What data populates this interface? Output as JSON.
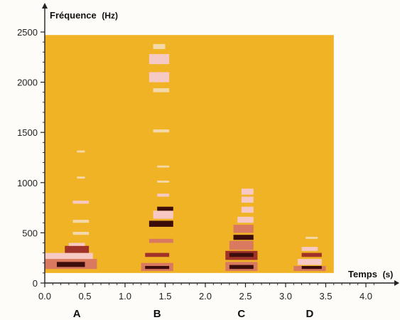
{
  "chart_data": {
    "type": "heatmap",
    "title": "",
    "xlabel": "Temps",
    "xunit": "(s)",
    "ylabel": "Fréquence",
    "yunit": "(Hz)",
    "xlim": [
      0,
      4.2
    ],
    "ylim": [
      0,
      2600
    ],
    "xticks": [
      "0.0",
      "0.5",
      "1.0",
      "1.5",
      "2.0",
      "2.5",
      "3.0",
      "3.5",
      "4.0"
    ],
    "yticks": [
      "0",
      "500",
      "1000",
      "1500",
      "2000",
      "2500"
    ],
    "plot_area": {
      "x_range": [
        0,
        3.6
      ],
      "y_range": [
        100,
        2470
      ],
      "background": "#f0b326"
    },
    "colors": {
      "background": "#f0b326",
      "levels": [
        "#f7c764",
        "#f5d8a8",
        "#f7c9c4",
        "#d97a60",
        "#a0322a",
        "#3c0d0a"
      ]
    },
    "segments": [
      {
        "label": "A",
        "label_x": 0.4,
        "bands": [
          {
            "x": [
              0.0,
              0.65
            ],
            "f": [
              140,
              240
            ],
            "level": 3
          },
          {
            "x": [
              0.15,
              0.5
            ],
            "f": [
              160,
              210
            ],
            "level": 5
          },
          {
            "x": [
              0.0,
              0.6
            ],
            "f": [
              240,
              300
            ],
            "level": 2
          },
          {
            "x": [
              0.25,
              0.55
            ],
            "f": [
              300,
              370
            ],
            "level": 4
          },
          {
            "x": [
              0.3,
              0.5
            ],
            "f": [
              370,
              400
            ],
            "level": 2
          },
          {
            "x": [
              0.35,
              0.55
            ],
            "f": [
              480,
              510
            ],
            "level": 1
          },
          {
            "x": [
              0.35,
              0.55
            ],
            "f": [
              600,
              630
            ],
            "level": 1
          },
          {
            "x": [
              0.35,
              0.55
            ],
            "f": [
              790,
              820
            ],
            "level": 2
          },
          {
            "x": [
              0.4,
              0.5
            ],
            "f": [
              1040,
              1060
            ],
            "level": 1
          },
          {
            "x": [
              0.4,
              0.5
            ],
            "f": [
              1300,
              1320
            ],
            "level": 1
          }
        ]
      },
      {
        "label": "B",
        "label_x": 1.4,
        "bands": [
          {
            "x": [
              1.2,
              1.6
            ],
            "f": [
              120,
              200
            ],
            "level": 3
          },
          {
            "x": [
              1.25,
              1.55
            ],
            "f": [
              140,
              170
            ],
            "level": 5
          },
          {
            "x": [
              1.25,
              1.55
            ],
            "f": [
              260,
              300
            ],
            "level": 4
          },
          {
            "x": [
              1.3,
              1.6
            ],
            "f": [
              400,
              440
            ],
            "level": 3
          },
          {
            "x": [
              1.3,
              1.6
            ],
            "f": [
              560,
              620
            ],
            "level": 5
          },
          {
            "x": [
              1.35,
              1.6
            ],
            "f": [
              640,
              720
            ],
            "level": 2
          },
          {
            "x": [
              1.4,
              1.6
            ],
            "f": [
              720,
              760
            ],
            "level": 5
          },
          {
            "x": [
              1.4,
              1.55
            ],
            "f": [
              860,
              890
            ],
            "level": 2
          },
          {
            "x": [
              1.4,
              1.55
            ],
            "f": [
              1000,
              1020
            ],
            "level": 1
          },
          {
            "x": [
              1.4,
              1.55
            ],
            "f": [
              1150,
              1170
            ],
            "level": 1
          },
          {
            "x": [
              1.35,
              1.55
            ],
            "f": [
              1500,
              1530
            ],
            "level": 1
          },
          {
            "x": [
              1.35,
              1.55
            ],
            "f": [
              1900,
              1940
            ],
            "level": 1
          },
          {
            "x": [
              1.3,
              1.55
            ],
            "f": [
              2000,
              2100
            ],
            "level": 2
          },
          {
            "x": [
              1.3,
              1.55
            ],
            "f": [
              2180,
              2280
            ],
            "level": 2
          },
          {
            "x": [
              1.35,
              1.5
            ],
            "f": [
              2330,
              2380
            ],
            "level": 1
          }
        ]
      },
      {
        "label": "C",
        "label_x": 2.45,
        "bands": [
          {
            "x": [
              2.25,
              2.65
            ],
            "f": [
              120,
              210
            ],
            "level": 3
          },
          {
            "x": [
              2.3,
              2.6
            ],
            "f": [
              140,
              180
            ],
            "level": 5
          },
          {
            "x": [
              2.25,
              2.65
            ],
            "f": [
              230,
              320
            ],
            "level": 4
          },
          {
            "x": [
              2.3,
              2.6
            ],
            "f": [
              260,
              300
            ],
            "level": 5
          },
          {
            "x": [
              2.3,
              2.6
            ],
            "f": [
              330,
              420
            ],
            "level": 3
          },
          {
            "x": [
              2.35,
              2.6
            ],
            "f": [
              430,
              480
            ],
            "level": 5
          },
          {
            "x": [
              2.35,
              2.6
            ],
            "f": [
              500,
              580
            ],
            "level": 3
          },
          {
            "x": [
              2.4,
              2.6
            ],
            "f": [
              600,
              660
            ],
            "level": 2
          },
          {
            "x": [
              2.45,
              2.6
            ],
            "f": [
              700,
              760
            ],
            "level": 2
          },
          {
            "x": [
              2.45,
              2.6
            ],
            "f": [
              800,
              860
            ],
            "level": 2
          },
          {
            "x": [
              2.45,
              2.6
            ],
            "f": [
              880,
              940
            ],
            "level": 2
          }
        ]
      },
      {
        "label": "D",
        "label_x": 3.3,
        "bands": [
          {
            "x": [
              3.1,
              3.5
            ],
            "f": [
              120,
              170
            ],
            "level": 3
          },
          {
            "x": [
              3.2,
              3.45
            ],
            "f": [
              140,
              170
            ],
            "level": 5
          },
          {
            "x": [
              3.15,
              3.45
            ],
            "f": [
              180,
              240
            ],
            "level": 2
          },
          {
            "x": [
              3.2,
              3.45
            ],
            "f": [
              260,
              300
            ],
            "level": 4
          },
          {
            "x": [
              3.2,
              3.4
            ],
            "f": [
              320,
              360
            ],
            "level": 2
          },
          {
            "x": [
              3.25,
              3.4
            ],
            "f": [
              440,
              460
            ],
            "level": 1
          }
        ]
      }
    ]
  }
}
